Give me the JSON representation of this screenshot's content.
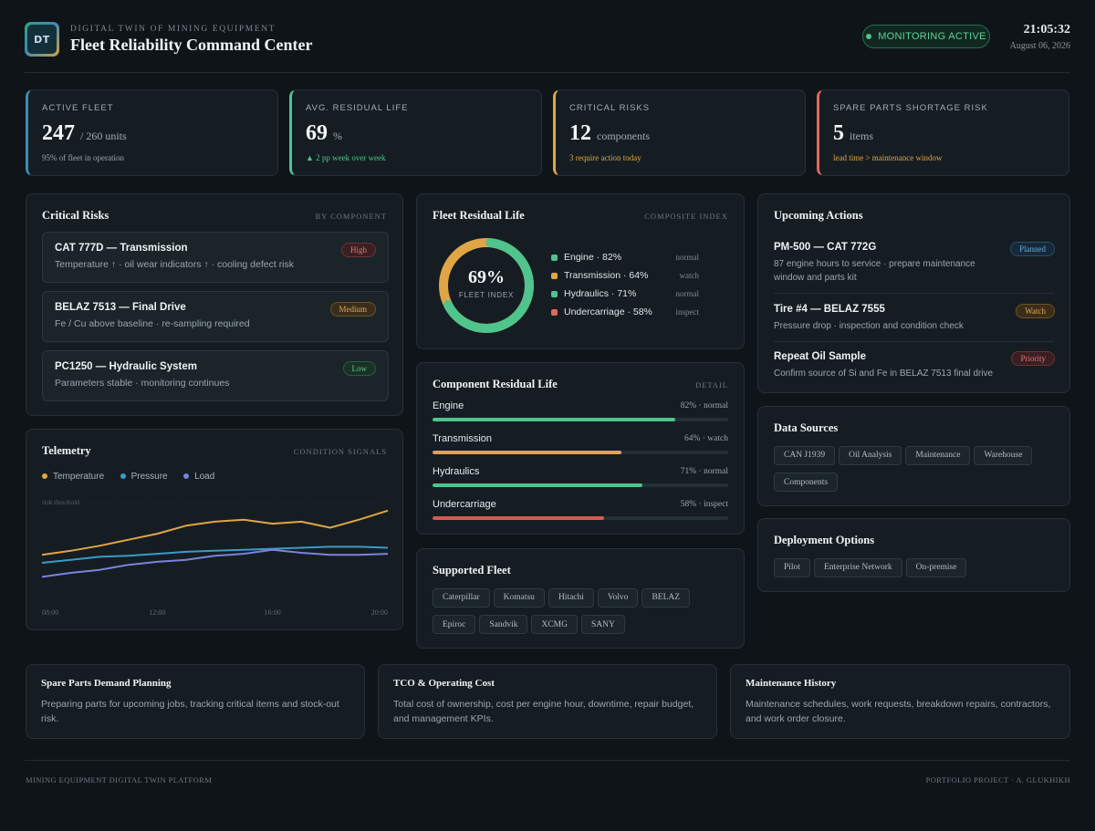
{
  "header": {
    "logo_text": "DT",
    "eyebrow": "DIGITAL TWIN OF MINING EQUIPMENT",
    "title": "Fleet Reliability Command Center",
    "status": "MONITORING ACTIVE",
    "time": "21:05:32",
    "date": "August 06, 2026"
  },
  "kpis": [
    {
      "label": "ACTIVE FLEET",
      "value": "247",
      "unit": "/ 260 units",
      "sub": "95% of fleet in operation",
      "color": "#3b8bb5"
    },
    {
      "label": "AVG. RESIDUAL LIFE",
      "value": "69",
      "unit": "%",
      "sub": "▲ 2 pp week over week",
      "color": "#4fc48c"
    },
    {
      "label": "CRITICAL RISKS",
      "value": "12",
      "unit": "components",
      "sub": "3 require action today",
      "color": "#e0a545"
    },
    {
      "label": "SPARE PARTS SHORTAGE RISK",
      "value": "5",
      "unit": "items",
      "sub": "lead time > maintenance window",
      "color": "#e06a5a"
    }
  ],
  "critical_risks": {
    "title": "Critical Risks",
    "tag": "BY COMPONENT",
    "items": [
      {
        "title": "CAT 777D — Transmission",
        "desc": "Temperature ↑ · oil wear indicators ↑ · cooling defect risk",
        "badge": "High"
      },
      {
        "title": "BELAZ 7513 — Final Drive",
        "desc": "Fe / Cu above baseline · re-sampling required",
        "badge": "Medium"
      },
      {
        "title": "PC1250 — Hydraulic System",
        "desc": "Parameters stable · monitoring continues",
        "badge": "Low"
      }
    ]
  },
  "telemetry": {
    "title": "Telemetry",
    "tag": "CONDITION SIGNALS",
    "threshold_label": "risk threshold",
    "legend": [
      "Temperature",
      "Pressure",
      "Load"
    ],
    "chart_data": {
      "type": "line",
      "x": [
        "08:00",
        "09:00",
        "10:00",
        "11:00",
        "12:00",
        "13:00",
        "14:00",
        "15:00",
        "16:00",
        "17:00",
        "18:00",
        "19:00",
        "20:00"
      ],
      "x_ticks": [
        "08:00",
        "12:00",
        "16:00",
        "20:00"
      ],
      "ylim": [
        0,
        100
      ],
      "series": [
        {
          "name": "Temperature",
          "color": "#e0a545",
          "values": [
            48,
            52,
            57,
            63,
            69,
            77,
            81,
            83,
            79,
            81,
            75,
            83,
            92
          ]
        },
        {
          "name": "Pressure",
          "color": "#3b9ac4",
          "values": [
            40,
            43,
            46,
            47,
            49,
            51,
            52,
            53,
            54,
            55,
            56,
            56,
            55
          ]
        },
        {
          "name": "Load",
          "color": "#7b82e0",
          "values": [
            26,
            30,
            33,
            38,
            41,
            43,
            47,
            49,
            53,
            50,
            48,
            48,
            49
          ]
        }
      ]
    }
  },
  "residual": {
    "title": "Fleet Residual Life",
    "tag": "COMPOSITE INDEX",
    "index_value": "69%",
    "index_label": "FLEET INDEX",
    "index_fraction": 0.69,
    "legend": [
      {
        "label": "Engine · 82%",
        "status": "normal",
        "color": "#4fc48c"
      },
      {
        "label": "Transmission · 64%",
        "status": "watch",
        "color": "#e0a545"
      },
      {
        "label": "Hydraulics · 71%",
        "status": "normal",
        "color": "#4fc48c"
      },
      {
        "label": "Undercarriage · 58%",
        "status": "inspect",
        "color": "#e06a5a"
      }
    ]
  },
  "components": {
    "title": "Component Residual Life",
    "tag": "DETAIL",
    "items": [
      {
        "name": "Engine",
        "pct": 82,
        "value": "82% · normal",
        "color": "#4fc48c"
      },
      {
        "name": "Transmission",
        "pct": 64,
        "value": "64% · watch",
        "color": "#e0a545"
      },
      {
        "name": "Hydraulics",
        "pct": 71,
        "value": "71% · normal",
        "color": "#4fc48c"
      },
      {
        "name": "Undercarriage",
        "pct": 58,
        "value": "58% · inspect",
        "color": "#d9584f"
      }
    ]
  },
  "fleet": {
    "title": "Supported Fleet",
    "brands": [
      "Caterpillar",
      "Komatsu",
      "Hitachi",
      "Volvo",
      "BELAZ",
      "Epiroc",
      "Sandvik",
      "XCMG",
      "SANY"
    ]
  },
  "actions": {
    "title": "Upcoming Actions",
    "items": [
      {
        "title": "PM-500 — CAT 772G",
        "desc": "87 engine hours to service · prepare maintenance window and parts kit",
        "badge": "Planned"
      },
      {
        "title": "Tire #4 — BELAZ 7555",
        "desc": "Pressure drop · inspection and condition check",
        "badge": "Watch"
      },
      {
        "title": "Repeat Oil Sample",
        "desc": "Confirm source of Si and Fe in BELAZ 7513 final drive",
        "badge": "Priority"
      }
    ]
  },
  "sources": {
    "title": "Data Sources",
    "items": [
      "CAN J1939",
      "Oil Analysis",
      "Maintenance",
      "Warehouse",
      "Components"
    ]
  },
  "deployment": {
    "title": "Deployment Options",
    "items": [
      "Pilot",
      "Enterprise Network",
      "On-premise"
    ]
  },
  "bottom": [
    {
      "title": "Spare Parts Demand Planning",
      "text": "Preparing parts for upcoming jobs, tracking critical items and stock-out risk."
    },
    {
      "title": "TCO & Operating Cost",
      "text": "Total cost of ownership, cost per engine hour, downtime, repair budget, and management KPIs."
    },
    {
      "title": "Maintenance History",
      "text": "Maintenance schedules, work requests, breakdown repairs, contractors, and work order closure."
    }
  ],
  "footer": {
    "left": "MINING EQUIPMENT DIGITAL TWIN PLATFORM",
    "right": "PORTFOLIO PROJECT · A. GLUKHIKH"
  }
}
